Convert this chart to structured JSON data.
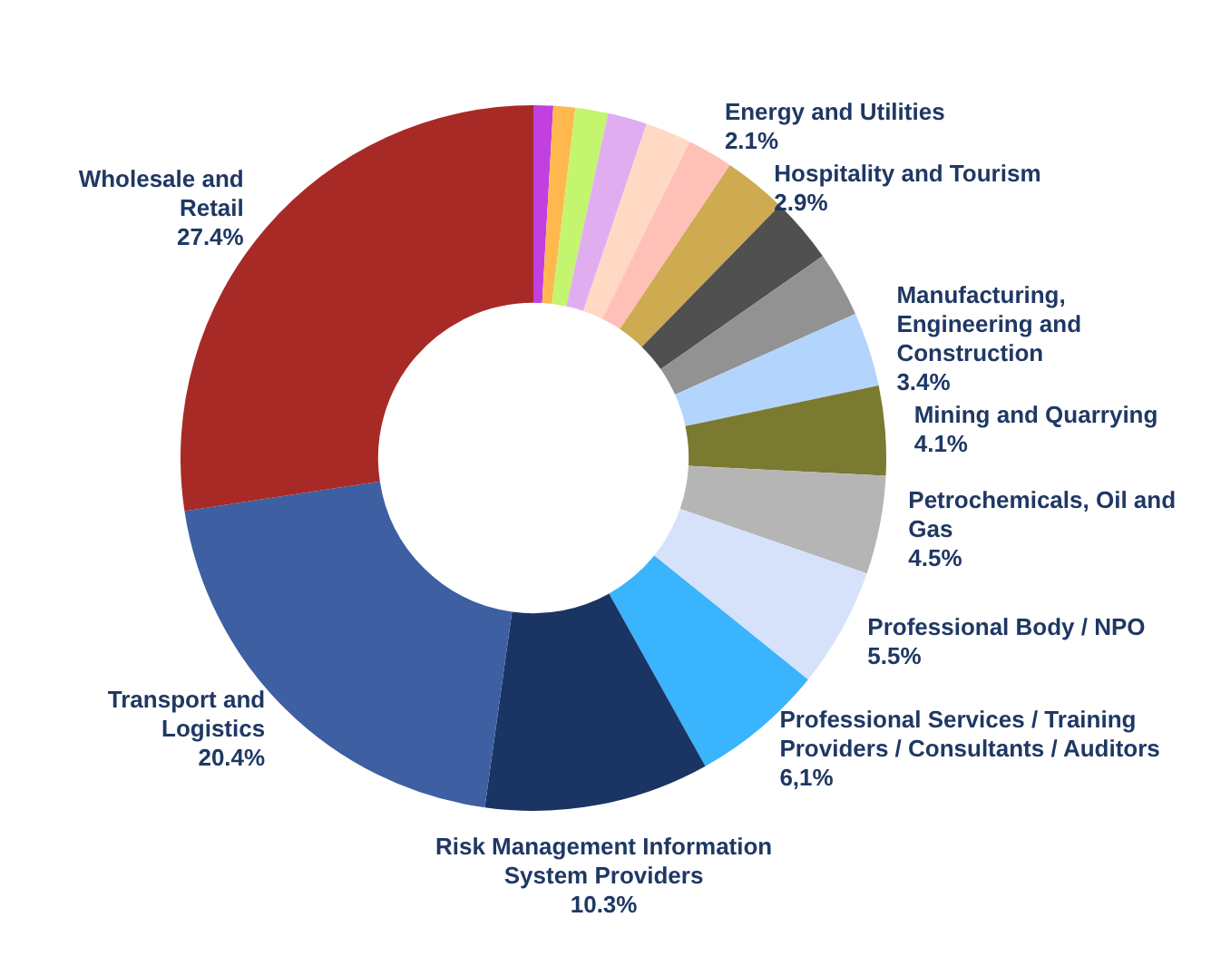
{
  "chart_data": {
    "type": "donut",
    "categories": [
      null,
      null,
      null,
      null,
      null,
      "Energy and Utilities",
      "Hospitality and Tourism",
      null,
      null,
      "Manufacturing, Engineering and Construction",
      "Mining and Quarrying",
      "Petrochemicals, Oil and Gas",
      "Professional Body / NPO",
      "Professional Services / Training Providers / Consultants / Auditors",
      "Risk Management Information System Providers",
      "Transport and Logistics",
      "Wholesale and Retail"
    ],
    "values": [
      0.9,
      1.0,
      1.5,
      1.8,
      2.1,
      2.1,
      2.9,
      3.0,
      3.0,
      3.4,
      4.1,
      4.5,
      5.5,
      6.1,
      10.3,
      20.4,
      27.4
    ],
    "value_labels": [
      null,
      null,
      null,
      null,
      null,
      "2.1%",
      "2.9%",
      null,
      null,
      "3.4%",
      "4.1%",
      "4.5%",
      "5.5%",
      "6,1%",
      "10.3%",
      "20.4%",
      "27.4%"
    ],
    "colors": [
      "#c040e0",
      "#ffb84d",
      "#c4f56e",
      "#e0aef0",
      "#ffd9c4",
      "#ffc0b8",
      "#ceaa50",
      "#505050",
      "#929292",
      "#b3d4fc",
      "#7a7a30",
      "#b5b5b5",
      "#d6e2fa",
      "#3ab4fc",
      "#1a3564",
      "#3e5fa2",
      "#a82a26"
    ],
    "legend": false
  }
}
